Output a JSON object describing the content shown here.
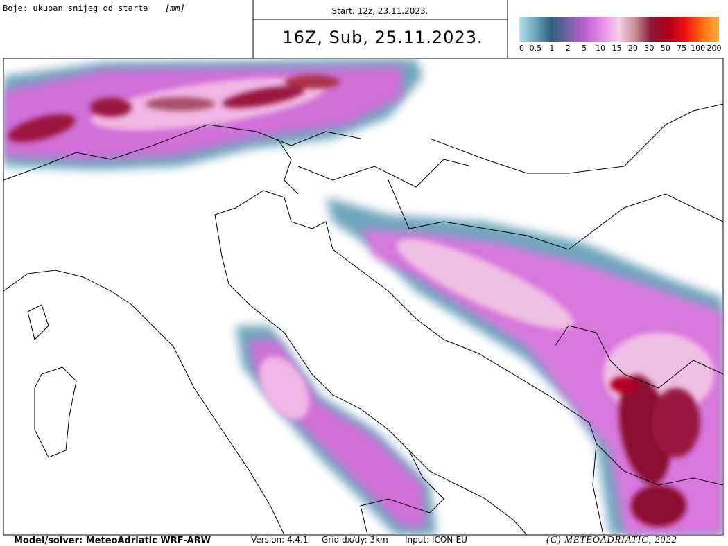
{
  "header": {
    "label": "Boje: ukupan snijeg od starta",
    "unit": "[mm]",
    "start": "Start: 12z, 23.11.2023.",
    "valid": "16Z, Sub, 25.11.2023."
  },
  "colorbar": {
    "ticks": [
      0,
      0.5,
      1,
      2,
      5,
      10,
      15,
      20,
      30,
      50,
      75,
      100,
      200
    ]
  },
  "footer": {
    "model": "Model/solver: MeteoAdriatic WRF-ARW",
    "version": "Version: 4.4.1",
    "grid": "Grid dx/dy: 3km",
    "input": "Input: ICON-EU",
    "copyright": "(C) METEOADRIATIC, 2022"
  }
}
